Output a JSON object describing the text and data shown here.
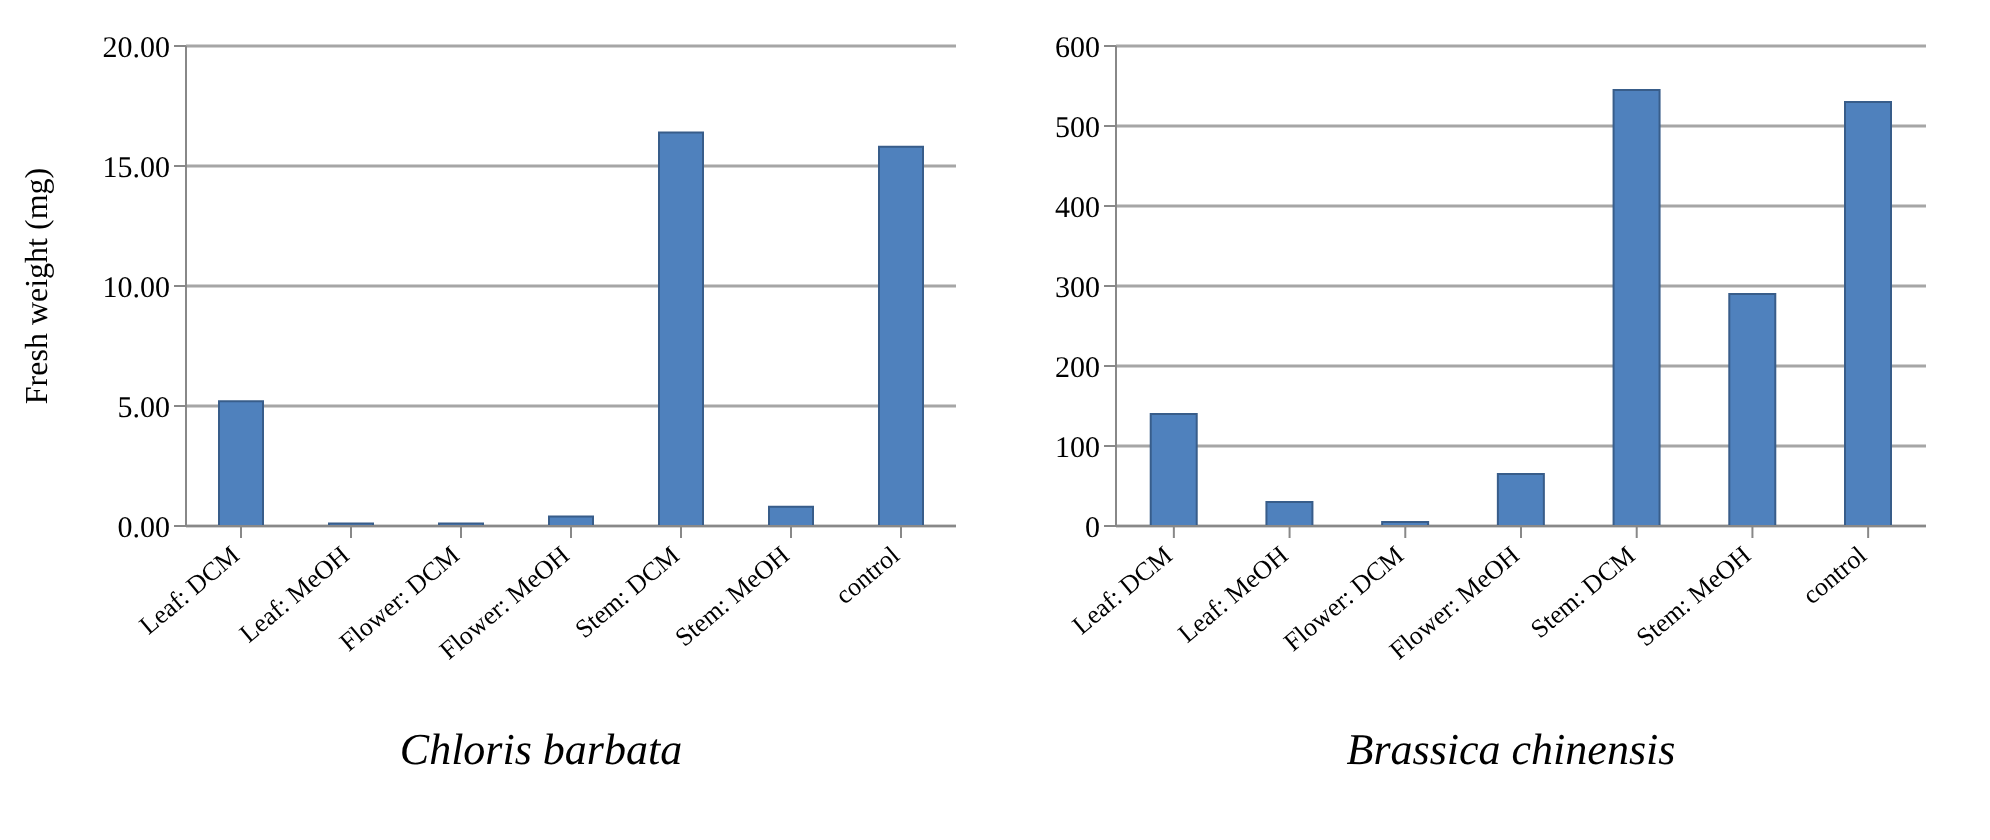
{
  "chart_data": [
    {
      "type": "bar",
      "title": "Chloris barbata",
      "ylabel": "Fresh weight  (mg)",
      "categories": [
        "Leaf: DCM",
        "Leaf: MeOH",
        "Flower:  DCM",
        "Flower: MeOH",
        "Stem:  DCM",
        "Stem: MeOH",
        "control"
      ],
      "values": [
        5.2,
        0.1,
        0.1,
        0.4,
        16.4,
        0.8,
        15.8
      ],
      "color": "#4f81bd",
      "ylim": [
        0,
        20
      ],
      "yticks": [
        {
          "value": 0,
          "label": "0.00"
        },
        {
          "value": 5,
          "label": "5.00"
        },
        {
          "value": 10,
          "label": "10.00"
        },
        {
          "value": 15,
          "label": "15.00"
        },
        {
          "value": 20,
          "label": "20.00"
        }
      ],
      "grid": "y"
    },
    {
      "type": "bar",
      "title": "Brassica chinensis",
      "categories": [
        "Leaf: DCM",
        "Leaf: MeOH",
        "Flower:  DCM",
        "Flower: MeOH",
        "Stem:  DCM",
        "Stem: MeOH",
        "control"
      ],
      "values": [
        140,
        30,
        5,
        65,
        545,
        290,
        530
      ],
      "color": "#4f81bd",
      "ylim": [
        0,
        600
      ],
      "yticks": [
        0,
        100,
        200,
        300,
        400,
        500,
        600
      ],
      "grid": "y"
    }
  ]
}
